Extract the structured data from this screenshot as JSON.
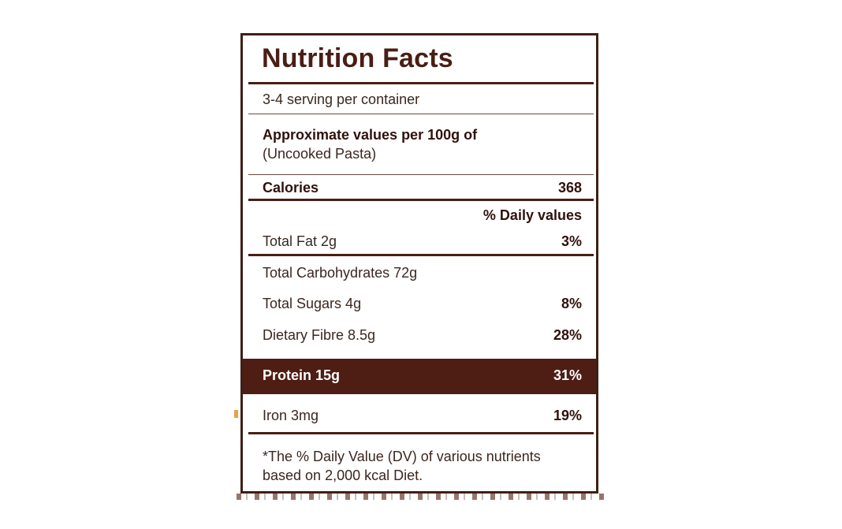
{
  "label": {
    "title": "Nutrition Facts",
    "servings": "3-4 serving per container",
    "approx_heading": "Approximate values per 100g of",
    "approx_sub": "(Uncooked Pasta)",
    "calories_label": "Calories",
    "calories_value": "368",
    "daily_values_header": "% Daily values",
    "rows": [
      {
        "label": "Total Fat 2g",
        "value": "3%"
      },
      {
        "label": "Total Carbohydrates 72g",
        "value": ""
      },
      {
        "label": "Total Sugars 4g",
        "value": "8%"
      },
      {
        "label": "Dietary Fibre 8.5g",
        "value": "28%"
      }
    ],
    "highlight": {
      "label": "Protein 15g",
      "value": "31%"
    },
    "iron": {
      "label": "Iron 3mg",
      "value": "19%"
    },
    "footnote_line1": "*The % Daily Value (DV) of various nutrients",
    "footnote_line2": "based on 2,000 kcal Diet."
  },
  "colors": {
    "border": "#3f1f16",
    "highlight_band": "#4e1d13",
    "text": "#3b2620"
  }
}
